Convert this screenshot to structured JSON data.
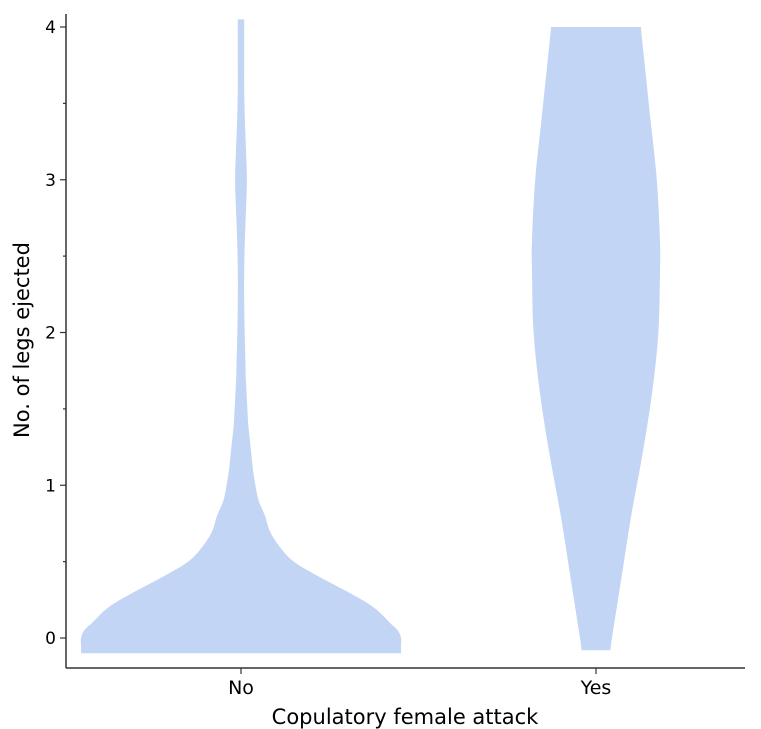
{
  "chart_data": {
    "type": "violin",
    "xlabel": "Copulatory female attack",
    "ylabel": "No. of legs ejected",
    "categories": [
      "No",
      "Yes"
    ],
    "ylim": [
      -0.1,
      4.05
    ],
    "yticks": [
      0,
      1,
      2,
      3,
      4
    ],
    "ytick_labels": [
      "0",
      "1",
      "2",
      "3",
      "4"
    ],
    "grid": false,
    "legend": "none",
    "fill_color": "#c3d5f4",
    "series": [
      {
        "category": "No",
        "value_range": [
          -0.1,
          4.05
        ],
        "density_profile": {
          "y": [
            -0.1,
            -0.05,
            0.0,
            0.05,
            0.1,
            0.2,
            0.3,
            0.4,
            0.5,
            0.6,
            0.7,
            0.8,
            0.9,
            1.0,
            1.1,
            1.2,
            1.3,
            1.4,
            1.5,
            1.6,
            1.7,
            1.8,
            2.0,
            2.2,
            2.4,
            2.6,
            2.8,
            3.0,
            3.2,
            3.4,
            3.6,
            3.8,
            4.05
          ],
          "half_width": [
            1.0,
            1.0,
            1.0,
            0.98,
            0.93,
            0.83,
            0.67,
            0.49,
            0.33,
            0.24,
            0.18,
            0.15,
            0.11,
            0.09,
            0.075,
            0.065,
            0.055,
            0.045,
            0.04,
            0.035,
            0.03,
            0.028,
            0.023,
            0.02,
            0.02,
            0.024,
            0.031,
            0.037,
            0.031,
            0.024,
            0.02,
            0.02,
            0.02
          ]
        }
      },
      {
        "category": "Yes",
        "value_range": [
          -0.08,
          4.0
        ],
        "density_profile": {
          "y": [
            -0.08,
            0.0,
            0.4,
            0.8,
            1.2,
            1.6,
            2.0,
            2.4,
            2.6,
            3.0,
            3.4,
            3.8,
            4.0
          ],
          "half_width": [
            0.09,
            0.1,
            0.16,
            0.22,
            0.29,
            0.35,
            0.39,
            0.4,
            0.4,
            0.38,
            0.34,
            0.3,
            0.28
          ]
        }
      }
    ]
  }
}
